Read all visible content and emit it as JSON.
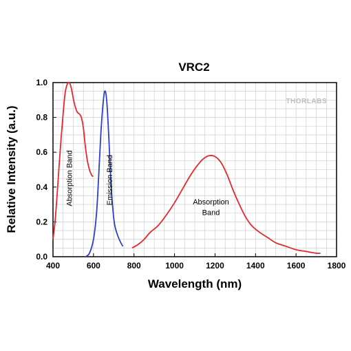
{
  "chart_data": {
    "type": "line",
    "title": "VRC2",
    "xlabel": "Wavelength (nm)",
    "ylabel": "Relative Intensity (a.u.)",
    "xlim": [
      400,
      1800
    ],
    "ylim": [
      0,
      1.0
    ],
    "xticks": [
      400,
      600,
      800,
      1000,
      1200,
      1400,
      1600,
      1800
    ],
    "yticks": [
      0.0,
      0.2,
      0.4,
      0.6,
      0.8,
      1.0
    ],
    "xtick_labels": [
      "400",
      "600",
      "800",
      "1000",
      "1200",
      "1400",
      "1600",
      "1800"
    ],
    "ytick_labels": [
      "0.0",
      "0.2",
      "0.4",
      "0.6",
      "0.8",
      "1.0"
    ],
    "grid": true,
    "watermark": "THORLABS",
    "series": [
      {
        "color": "#e8262c",
        "points": [
          [
            400,
            0.1
          ],
          [
            410,
            0.2
          ],
          [
            420,
            0.35
          ],
          [
            430,
            0.52
          ],
          [
            440,
            0.68
          ],
          [
            450,
            0.82
          ],
          [
            460,
            0.94
          ],
          [
            470,
            0.99
          ],
          [
            480,
            1.0
          ],
          [
            490,
            0.97
          ],
          [
            500,
            0.91
          ],
          [
            510,
            0.86
          ],
          [
            520,
            0.83
          ],
          [
            530,
            0.82
          ],
          [
            540,
            0.8
          ],
          [
            550,
            0.74
          ],
          [
            560,
            0.63
          ],
          [
            570,
            0.55
          ],
          [
            580,
            0.5
          ],
          [
            590,
            0.47
          ],
          [
            598,
            0.46
          ]
        ]
      },
      {
        "color": "#2a3fcf",
        "points": [
          [
            560,
            0.0
          ],
          [
            580,
            0.02
          ],
          [
            600,
            0.1
          ],
          [
            615,
            0.25
          ],
          [
            625,
            0.45
          ],
          [
            635,
            0.68
          ],
          [
            645,
            0.85
          ],
          [
            655,
            0.95
          ],
          [
            665,
            0.9
          ],
          [
            675,
            0.7
          ],
          [
            685,
            0.45
          ],
          [
            695,
            0.28
          ],
          [
            705,
            0.18
          ],
          [
            720,
            0.12
          ],
          [
            735,
            0.08
          ],
          [
            745,
            0.06
          ]
        ]
      },
      {
        "color": "#e8262c",
        "points": [
          [
            790,
            0.05
          ],
          [
            820,
            0.07
          ],
          [
            850,
            0.1
          ],
          [
            880,
            0.14
          ],
          [
            920,
            0.18
          ],
          [
            960,
            0.24
          ],
          [
            1000,
            0.31
          ],
          [
            1040,
            0.39
          ],
          [
            1080,
            0.47
          ],
          [
            1110,
            0.52
          ],
          [
            1140,
            0.56
          ],
          [
            1170,
            0.58
          ],
          [
            1200,
            0.575
          ],
          [
            1230,
            0.54
          ],
          [
            1260,
            0.47
          ],
          [
            1290,
            0.38
          ],
          [
            1320,
            0.3
          ],
          [
            1350,
            0.23
          ],
          [
            1380,
            0.18
          ],
          [
            1420,
            0.14
          ],
          [
            1460,
            0.11
          ],
          [
            1500,
            0.08
          ],
          [
            1550,
            0.06
          ],
          [
            1600,
            0.04
          ],
          [
            1650,
            0.03
          ],
          [
            1700,
            0.02
          ],
          [
            1720,
            0.02
          ]
        ]
      }
    ],
    "annotations": [
      {
        "text": "Absorption Band",
        "x": 493,
        "y": 0.45,
        "rotation": -90
      },
      {
        "text": "Emission Band",
        "x": 692,
        "y": 0.44,
        "rotation": -90
      },
      {
        "text": "Absorption",
        "x": 1180,
        "y": 0.3
      },
      {
        "text": "Band",
        "x": 1180,
        "y": 0.24
      }
    ]
  }
}
